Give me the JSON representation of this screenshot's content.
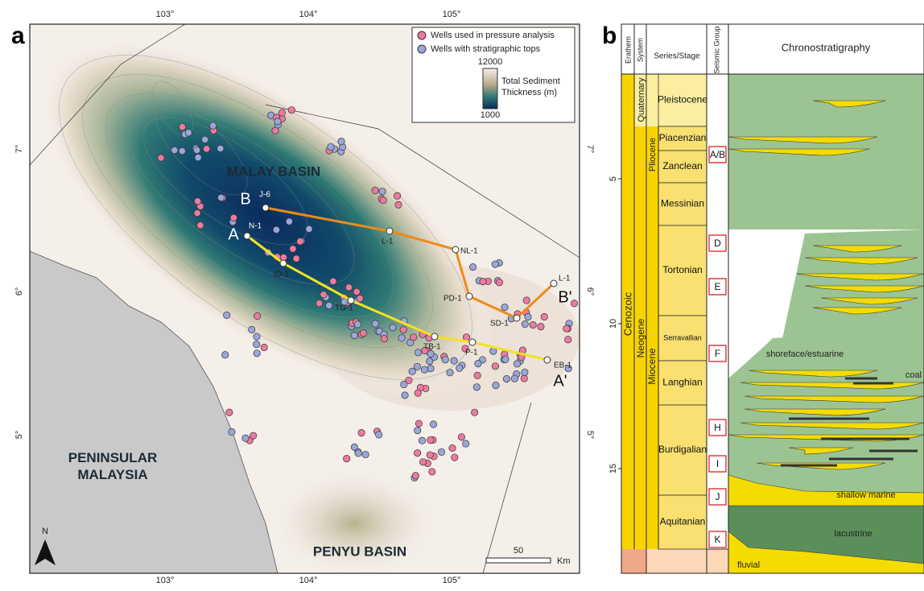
{
  "panel_a": {
    "label": "a",
    "lon_labels": [
      "103°",
      "104°",
      "105°"
    ],
    "lat_labels": [
      "7°",
      "6°",
      "5°"
    ],
    "legend": {
      "items": [
        "Wells used in pressure analysis",
        "Wells with stratigraphic tops"
      ],
      "colorbar_title": "Total Sediment Thickness (m)",
      "colorbar_min": "1000",
      "colorbar_max": "12000"
    },
    "places": [
      "MALAY BASIN",
      "PENINSULAR MALAYSIA",
      "PENYU BASIN"
    ],
    "wells": [
      "J-6",
      "N-1",
      "L-1",
      "NL-1",
      "ID-1",
      "TG-1",
      "PD-1",
      "SD-1",
      "TB-1",
      "P-1",
      "EB-1",
      "L-1"
    ],
    "section_ends": [
      "A",
      "B",
      "A'",
      "B'"
    ],
    "scale_bar": {
      "length": "50",
      "unit": "Km"
    },
    "north": "N"
  },
  "panel_b": {
    "label": "b",
    "headers": [
      "Erathem",
      "System",
      "Series/Stage",
      "Seismic Group",
      "Chronostratigraphy"
    ],
    "erathem": "Cenozoic",
    "systems": [
      "Quaternary",
      "Neogene"
    ],
    "series": [
      "Pliocene",
      "Miocene"
    ],
    "stages": [
      "Pleistocene",
      "Piacenzian",
      "Zanclean",
      "Messinian",
      "Tortonian",
      "Serravallian",
      "Langhian",
      "Burdigalian",
      "Aquitanian"
    ],
    "seismic_groups": [
      "A/B",
      "D",
      "E",
      "F",
      "H",
      "I",
      "J",
      "K"
    ],
    "age_ticks": [
      5,
      10,
      15
    ],
    "facies": [
      "coal",
      "shoreface/estuarine",
      "shallow marine",
      "lacustrine",
      "fluvial"
    ]
  }
}
